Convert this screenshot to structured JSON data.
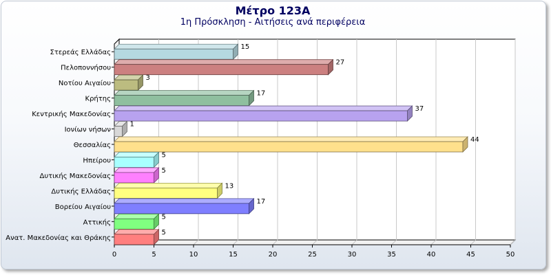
{
  "header": {
    "title": "Μέτρο 123Α",
    "subtitle": "1η Πρόσκληση - Αιτήσεις ανά περιφέρεια"
  },
  "chart_data": {
    "type": "bar",
    "orientation": "horizontal",
    "title": "Μέτρο 123Α",
    "subtitle": "1η Πρόσκληση - Αιτήσεις ανά περιφέρεια",
    "xlabel": "",
    "ylabel": "",
    "xlim": [
      0,
      50
    ],
    "x_ticks": [
      0,
      5,
      10,
      15,
      20,
      25,
      30,
      35,
      40,
      45,
      50
    ],
    "grid": true,
    "legend": "none",
    "categories": [
      "Στερεάς Ελλάδας",
      "Πελοποννήσου",
      "Νοτίου Αιγαίου",
      "Κρήτης",
      "Κεντρικής Μακεδονίας",
      "Ιονίων νήσων",
      "Θεσσαλίας",
      "Ηπείρου",
      "Δυτικής Μακεδονίας",
      "Δυτικής Ελλάδας",
      "Βορείου Αιγαίου",
      "Αττικής",
      "Ανατ. Μακεδονίας και Θράκης"
    ],
    "values": [
      15,
      27,
      3,
      17,
      37,
      1,
      44,
      5,
      5,
      13,
      17,
      5,
      5
    ],
    "colors": [
      "#b5d8e0",
      "#cc8080",
      "#bcbc80",
      "#8fbf9f",
      "#b8a2ef",
      "#d8d8d8",
      "#ffe08c",
      "#a8ffff",
      "#ff80ff",
      "#ffff80",
      "#7f7fff",
      "#80ff80",
      "#ff7f7f"
    ],
    "data_labels": true
  }
}
